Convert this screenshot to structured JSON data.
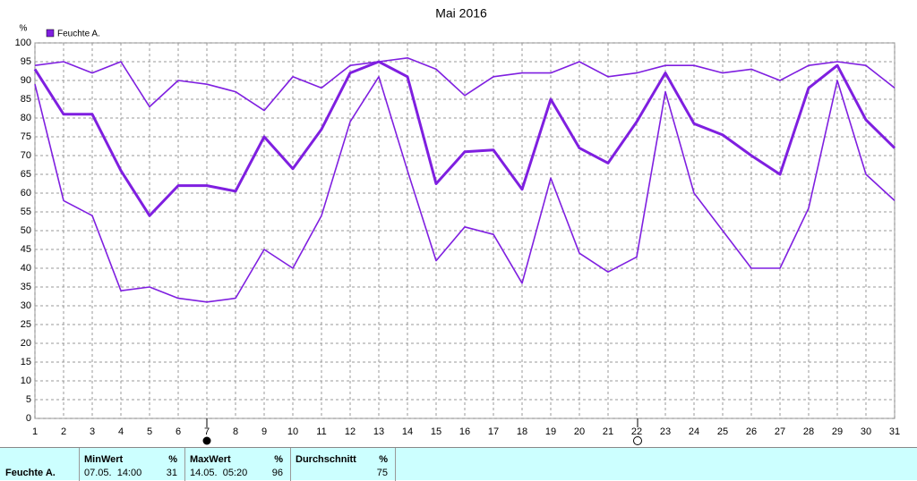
{
  "chart_data": {
    "type": "line",
    "title": "Mai 2016",
    "y_unit": "%",
    "x": [
      1,
      2,
      3,
      4,
      5,
      6,
      7,
      8,
      9,
      10,
      11,
      12,
      13,
      14,
      15,
      16,
      17,
      18,
      19,
      20,
      21,
      22,
      23,
      24,
      25,
      26,
      27,
      28,
      29,
      30,
      31
    ],
    "xlim": [
      1,
      31
    ],
    "xticks": [
      1,
      2,
      3,
      4,
      5,
      6,
      7,
      8,
      9,
      10,
      11,
      12,
      13,
      14,
      15,
      16,
      17,
      18,
      19,
      20,
      21,
      22,
      23,
      24,
      25,
      26,
      27,
      28,
      29,
      30,
      31
    ],
    "ylim": [
      0,
      100
    ],
    "yticks": [
      0,
      5,
      10,
      15,
      20,
      25,
      30,
      35,
      40,
      45,
      50,
      55,
      60,
      65,
      70,
      75,
      80,
      85,
      90,
      95,
      100
    ],
    "grid": true,
    "series": [
      {
        "name": "Feuchte A.",
        "color": "#7f1fe0",
        "values": [
          93,
          81,
          81,
          66,
          54,
          62,
          62,
          60.5,
          75,
          66.5,
          77,
          92,
          95,
          91,
          62.5,
          71,
          71.5,
          61,
          85,
          72,
          68,
          79,
          92,
          78.5,
          75.5,
          70,
          65,
          88,
          94,
          79.5,
          72
        ],
        "max": [
          94,
          95,
          92,
          95,
          83,
          90,
          89,
          87,
          82,
          91,
          88,
          94,
          95,
          96,
          93,
          86,
          91,
          92,
          92,
          95,
          91,
          92,
          94,
          94,
          92,
          93,
          90,
          94,
          95,
          94,
          88
        ],
        "min": [
          89,
          58,
          54,
          34,
          35,
          32,
          31,
          32,
          45,
          40,
          54,
          79,
          91,
          66,
          42,
          51,
          49,
          36,
          64,
          44,
          39,
          43,
          87,
          60,
          50,
          40,
          40,
          56,
          90,
          65,
          58
        ]
      }
    ]
  },
  "table": {
    "row_label": "Feuchte A.",
    "columns": [
      {
        "header": "MinWert",
        "unit": "%",
        "time": "07.05.  14:00",
        "value": 31
      },
      {
        "header": "MaxWert",
        "unit": "%",
        "time": "14.05.  05:20",
        "value": 96
      },
      {
        "header": "Durchschnitt",
        "unit": "%",
        "value": 75
      }
    ]
  }
}
